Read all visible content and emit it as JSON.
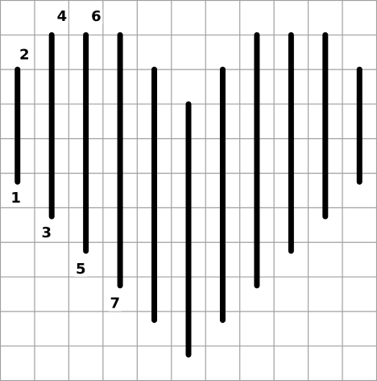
{
  "grid": {
    "columns": 11,
    "rows": 11,
    "line_color": "#a0a0a0",
    "background": "#ffffff"
  },
  "stitches": {
    "color": "#000000",
    "segments": [
      {
        "col": 0.5,
        "top": 2,
        "bottom": 5.25
      },
      {
        "col": 1.5,
        "top": 1,
        "bottom": 6.25
      },
      {
        "col": 2.5,
        "top": 1,
        "bottom": 7.25
      },
      {
        "col": 3.5,
        "top": 1,
        "bottom": 8.25
      },
      {
        "col": 4.5,
        "top": 2,
        "bottom": 9.25
      },
      {
        "col": 5.5,
        "top": 3,
        "bottom": 10.25
      },
      {
        "col": 6.5,
        "top": 2,
        "bottom": 9.25
      },
      {
        "col": 7.5,
        "top": 1,
        "bottom": 8.25
      },
      {
        "col": 8.5,
        "top": 1,
        "bottom": 7.25
      },
      {
        "col": 9.5,
        "top": 1,
        "bottom": 6.25
      },
      {
        "col": 10.5,
        "top": 2,
        "bottom": 5.25
      }
    ]
  },
  "labels": [
    {
      "text": "1",
      "col": 0.45,
      "row": 5.85
    },
    {
      "text": "2",
      "col": 0.7,
      "row": 1.7
    },
    {
      "text": "3",
      "col": 1.35,
      "row": 6.85
    },
    {
      "text": "4",
      "col": 1.8,
      "row": 0.6
    },
    {
      "text": "5",
      "col": 2.35,
      "row": 7.9
    },
    {
      "text": "6",
      "col": 2.8,
      "row": 0.6
    },
    {
      "text": "7",
      "col": 3.35,
      "row": 8.9
    }
  ]
}
